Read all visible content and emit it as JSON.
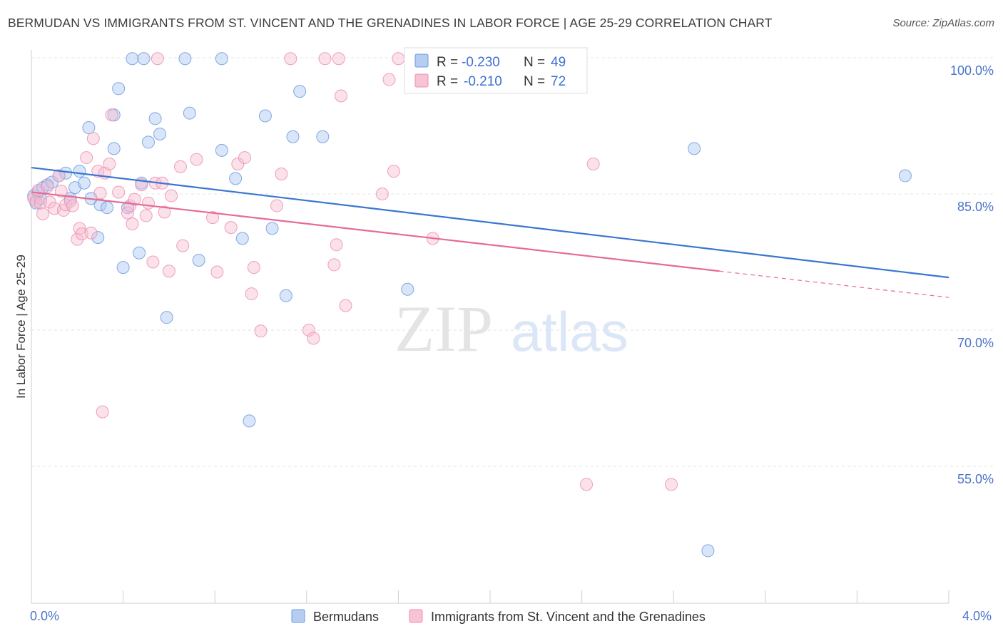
{
  "title": "BERMUDAN VS IMMIGRANTS FROM ST. VINCENT AND THE GRENADINES IN LABOR FORCE | AGE 25-29 CORRELATION CHART",
  "source": "Source: ZipAtlas.com",
  "watermark": {
    "zip": "ZIP",
    "atlas": "atlas"
  },
  "chart_data": {
    "type": "scatter",
    "xlabel": "",
    "ylabel": "In Labor Force | Age 25-29",
    "xlim": [
      0.0,
      4.0
    ],
    "ylim": [
      40.0,
      100.0
    ],
    "x_tick_labels": [
      "0.0%",
      "4.0%"
    ],
    "y_ticks": [
      100,
      85,
      70,
      55
    ],
    "y_tick_labels": [
      "100.0%",
      "85.0%",
      "70.0%",
      "55.0%"
    ],
    "grid": "horizontal dashed",
    "legend_top": [
      {
        "r_label": "R =",
        "r_value": "-0.230",
        "n_label": "N =",
        "n_value": "49"
      },
      {
        "r_label": "R =",
        "r_value": "-0.210",
        "n_label": "N =",
        "n_value": "72"
      }
    ],
    "series": [
      {
        "name": "Bermudans",
        "color": "#6c9be0",
        "fill": "#aac6ef",
        "trend": {
          "x": [
            0.0,
            4.0
          ],
          "y": [
            87.9,
            75.8
          ]
        },
        "points": [
          [
            0.01,
            84.8
          ],
          [
            0.02,
            84.0
          ],
          [
            0.03,
            85.2
          ],
          [
            0.04,
            84.5
          ],
          [
            0.05,
            85.7
          ],
          [
            0.07,
            86.0
          ],
          [
            0.09,
            86.3
          ],
          [
            0.12,
            87.0
          ],
          [
            0.15,
            87.3
          ],
          [
            0.17,
            84.5
          ],
          [
            0.19,
            85.7
          ],
          [
            0.21,
            87.5
          ],
          [
            0.23,
            86.2
          ],
          [
            0.25,
            92.3
          ],
          [
            0.26,
            84.5
          ],
          [
            0.29,
            80.2
          ],
          [
            0.3,
            83.8
          ],
          [
            0.33,
            83.5
          ],
          [
            0.36,
            93.7
          ],
          [
            0.36,
            90.0
          ],
          [
            0.38,
            96.6
          ],
          [
            0.4,
            76.9
          ],
          [
            0.42,
            83.5
          ],
          [
            0.44,
            99.9
          ],
          [
            0.47,
            78.5
          ],
          [
            0.48,
            86.2
          ],
          [
            0.49,
            99.9
          ],
          [
            0.51,
            90.7
          ],
          [
            0.54,
            93.3
          ],
          [
            0.56,
            91.6
          ],
          [
            0.59,
            71.4
          ],
          [
            0.67,
            99.9
          ],
          [
            0.69,
            93.9
          ],
          [
            0.73,
            77.7
          ],
          [
            0.83,
            99.9
          ],
          [
            0.83,
            89.8
          ],
          [
            0.89,
            86.7
          ],
          [
            0.92,
            80.1
          ],
          [
            0.95,
            60.0
          ],
          [
            1.02,
            93.6
          ],
          [
            1.05,
            81.2
          ],
          [
            1.11,
            73.8
          ],
          [
            1.14,
            91.3
          ],
          [
            1.17,
            96.3
          ],
          [
            1.27,
            91.3
          ],
          [
            1.64,
            74.5
          ],
          [
            1.73,
            99.9
          ],
          [
            2.89,
            90.0
          ],
          [
            3.81,
            87.0
          ],
          [
            2.95,
            45.7
          ]
        ]
      },
      {
        "name": "Immigrants from St. Vincent and the Grenadines",
        "color": "#ec8fb0",
        "fill": "#f6bdd0",
        "trend": {
          "x": [
            0.0,
            3.0
          ],
          "y": [
            85.2,
            76.5
          ]
        },
        "trend_dashed": {
          "x": [
            3.0,
            4.0
          ],
          "y": [
            76.5,
            73.6
          ]
        },
        "points": [
          [
            0.01,
            84.5
          ],
          [
            0.02,
            84.2
          ],
          [
            0.03,
            85.4
          ],
          [
            0.04,
            84.0
          ],
          [
            0.05,
            82.8
          ],
          [
            0.07,
            85.8
          ],
          [
            0.08,
            84.1
          ],
          [
            0.1,
            83.4
          ],
          [
            0.12,
            87.0
          ],
          [
            0.13,
            85.3
          ],
          [
            0.14,
            83.2
          ],
          [
            0.15,
            83.8
          ],
          [
            0.17,
            84.2
          ],
          [
            0.18,
            83.7
          ],
          [
            0.2,
            80.0
          ],
          [
            0.21,
            81.2
          ],
          [
            0.22,
            80.6
          ],
          [
            0.24,
            89.0
          ],
          [
            0.26,
            80.7
          ],
          [
            0.27,
            91.1
          ],
          [
            0.29,
            87.5
          ],
          [
            0.3,
            85.1
          ],
          [
            0.31,
            61.0
          ],
          [
            0.32,
            87.3
          ],
          [
            0.34,
            88.3
          ],
          [
            0.35,
            93.7
          ],
          [
            0.38,
            85.2
          ],
          [
            0.42,
            82.9
          ],
          [
            0.43,
            83.7
          ],
          [
            0.44,
            81.7
          ],
          [
            0.45,
            84.4
          ],
          [
            0.48,
            86.0
          ],
          [
            0.5,
            82.6
          ],
          [
            0.51,
            84.0
          ],
          [
            0.53,
            77.5
          ],
          [
            0.54,
            86.2
          ],
          [
            0.57,
            86.2
          ],
          [
            0.58,
            83.0
          ],
          [
            0.6,
            76.5
          ],
          [
            0.61,
            84.8
          ],
          [
            0.65,
            88.0
          ],
          [
            0.66,
            79.3
          ],
          [
            0.72,
            88.8
          ],
          [
            0.79,
            82.4
          ],
          [
            0.81,
            76.4
          ],
          [
            0.87,
            81.3
          ],
          [
            0.9,
            88.3
          ],
          [
            0.93,
            89.0
          ],
          [
            0.96,
            74.0
          ],
          [
            0.97,
            76.9
          ],
          [
            1.0,
            69.9
          ],
          [
            1.07,
            83.7
          ],
          [
            1.09,
            87.2
          ],
          [
            1.13,
            99.9
          ],
          [
            1.21,
            70.0
          ],
          [
            1.23,
            69.1
          ],
          [
            1.28,
            99.9
          ],
          [
            1.32,
            77.2
          ],
          [
            1.33,
            79.4
          ],
          [
            1.34,
            99.9
          ],
          [
            1.35,
            95.8
          ],
          [
            1.37,
            72.7
          ],
          [
            1.53,
            85.0
          ],
          [
            1.56,
            97.6
          ],
          [
            1.58,
            87.5
          ],
          [
            1.6,
            99.9
          ],
          [
            1.75,
            80.1
          ],
          [
            2.42,
            53.0
          ],
          [
            2.45,
            88.3
          ],
          [
            2.79,
            53.0
          ],
          [
            1.69,
            99.9
          ],
          [
            0.55,
            99.9
          ]
        ]
      }
    ]
  }
}
